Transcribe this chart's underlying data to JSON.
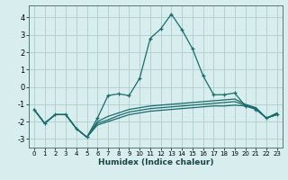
{
  "xlabel": "Humidex (Indice chaleur)",
  "ylabel": "",
  "xlim": [
    -0.5,
    23.5
  ],
  "ylim": [
    -3.5,
    4.7
  ],
  "yticks": [
    -3,
    -2,
    -1,
    0,
    1,
    2,
    3,
    4
  ],
  "xticks": [
    0,
    1,
    2,
    3,
    4,
    5,
    6,
    7,
    8,
    9,
    10,
    11,
    12,
    13,
    14,
    15,
    16,
    17,
    18,
    19,
    20,
    21,
    22,
    23
  ],
  "background_color": "#d8eeee",
  "grid_color": "#b0cccc",
  "line_color": "#1a6b6b",
  "line1_x": [
    0,
    1,
    2,
    3,
    4,
    5,
    6,
    7,
    8,
    9,
    10,
    11,
    12,
    13,
    14,
    15,
    16,
    17,
    18,
    19,
    20,
    21,
    22,
    23
  ],
  "line1_y": [
    -1.3,
    -2.1,
    -1.6,
    -1.6,
    -2.4,
    -2.9,
    -1.8,
    -0.5,
    -0.4,
    -0.5,
    0.5,
    2.8,
    3.35,
    4.2,
    3.3,
    2.2,
    0.65,
    -0.45,
    -0.45,
    -0.35,
    -1.1,
    -1.3,
    -1.8,
    -1.6
  ],
  "line2_x": [
    0,
    1,
    2,
    3,
    4,
    5,
    6,
    7,
    8,
    9,
    10,
    11,
    12,
    13,
    14,
    15,
    16,
    17,
    18,
    19,
    20,
    21,
    22,
    23
  ],
  "line2_y": [
    -1.3,
    -2.1,
    -1.6,
    -1.6,
    -2.4,
    -2.9,
    -2.2,
    -2.0,
    -1.8,
    -1.6,
    -1.5,
    -1.4,
    -1.35,
    -1.3,
    -1.25,
    -1.2,
    -1.15,
    -1.1,
    -1.1,
    -1.05,
    -1.1,
    -1.2,
    -1.8,
    -1.6
  ],
  "line3_x": [
    0,
    1,
    2,
    3,
    4,
    5,
    6,
    7,
    8,
    9,
    10,
    11,
    12,
    13,
    14,
    15,
    16,
    17,
    18,
    19,
    20,
    21,
    22,
    23
  ],
  "line3_y": [
    -1.3,
    -2.1,
    -1.6,
    -1.6,
    -2.4,
    -2.9,
    -2.0,
    -1.7,
    -1.5,
    -1.3,
    -1.2,
    -1.1,
    -1.05,
    -1.0,
    -0.95,
    -0.9,
    -0.85,
    -0.8,
    -0.75,
    -0.7,
    -1.0,
    -1.2,
    -1.8,
    -1.5
  ],
  "line4_x": [
    0,
    1,
    2,
    3,
    4,
    5,
    6,
    7,
    8,
    9,
    10,
    11,
    12,
    13,
    14,
    15,
    16,
    17,
    18,
    19,
    20,
    21,
    22,
    23
  ],
  "line4_y": [
    -1.3,
    -2.1,
    -1.6,
    -1.6,
    -2.4,
    -2.9,
    -2.1,
    -1.9,
    -1.65,
    -1.45,
    -1.35,
    -1.25,
    -1.2,
    -1.15,
    -1.1,
    -1.05,
    -1.0,
    -0.95,
    -0.9,
    -0.85,
    -1.05,
    -1.25,
    -1.8,
    -1.55
  ]
}
